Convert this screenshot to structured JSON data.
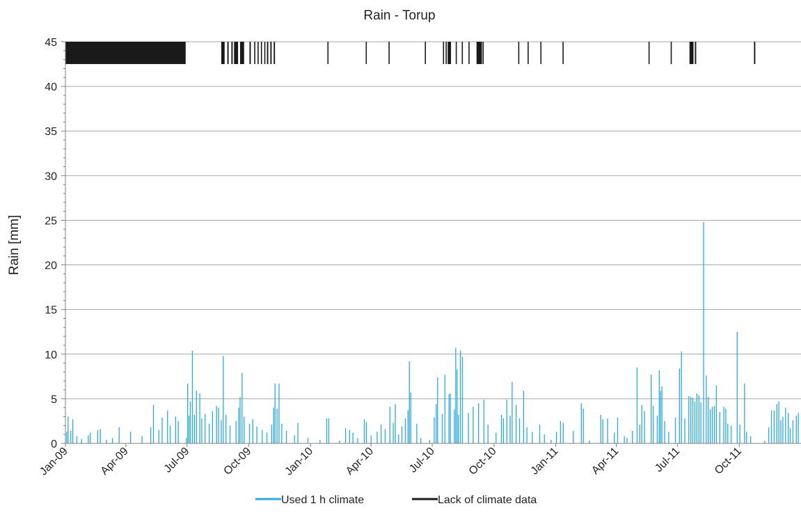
{
  "chart_data": {
    "type": "bar",
    "title": "Rain - Torup",
    "xlabel": "",
    "ylabel": "Rain [mm]",
    "ylim": [
      0,
      45
    ],
    "yticks": [
      0,
      5,
      10,
      15,
      20,
      25,
      30,
      35,
      40,
      45
    ],
    "xlim": [
      "2009-01-01",
      "2011-12-31"
    ],
    "xtick_labels": [
      "Jan-09",
      "Apr-09",
      "Jul-09",
      "Oct-09",
      "Jan-10",
      "Apr-10",
      "Jul-10",
      "Oct-10",
      "Jan-11",
      "Apr-11",
      "Jul-11",
      "Oct-11"
    ],
    "xtick_dates": [
      "2009-01-01",
      "2009-04-01",
      "2009-07-01",
      "2009-10-01",
      "2010-01-01",
      "2010-04-01",
      "2010-07-01",
      "2010-10-01",
      "2011-01-01",
      "2011-04-01",
      "2011-07-01",
      "2011-10-01"
    ],
    "grid": "horizontal",
    "legend_position": "bottom",
    "colors": {
      "rain": "#29abe2",
      "lack": "#1a1a1a",
      "grid": "#a6a6a6"
    },
    "series": [
      {
        "name": "Used 1 h climate",
        "kind": "rain-bars",
        "points": [
          [
            "2009-01-03",
            1.3
          ],
          [
            "2009-01-05",
            3.0
          ],
          [
            "2009-01-09",
            1.4
          ],
          [
            "2009-01-12",
            2.7
          ],
          [
            "2009-01-18",
            0.8
          ],
          [
            "2009-01-25",
            0.5
          ],
          [
            "2009-02-04",
            0.9
          ],
          [
            "2009-02-07",
            1.2
          ],
          [
            "2009-02-18",
            1.5
          ],
          [
            "2009-02-22",
            1.6
          ],
          [
            "2009-03-03",
            0.4
          ],
          [
            "2009-03-12",
            0.6
          ],
          [
            "2009-03-22",
            1.8
          ],
          [
            "2009-04-08",
            1.3
          ],
          [
            "2009-04-25",
            0.8
          ],
          [
            "2009-05-08",
            1.8
          ],
          [
            "2009-05-12",
            4.3
          ],
          [
            "2009-05-20",
            1.5
          ],
          [
            "2009-05-25",
            2.9
          ],
          [
            "2009-06-02",
            3.7
          ],
          [
            "2009-06-06",
            2.0
          ],
          [
            "2009-06-14",
            3.0
          ],
          [
            "2009-06-18",
            2.5
          ],
          [
            "2009-06-30",
            0.6
          ],
          [
            "2009-07-02",
            6.7
          ],
          [
            "2009-07-04",
            3.1
          ],
          [
            "2009-07-06",
            4.7
          ],
          [
            "2009-07-09",
            10.4
          ],
          [
            "2009-07-12",
            3.2
          ],
          [
            "2009-07-15",
            5.9
          ],
          [
            "2009-07-20",
            5.6
          ],
          [
            "2009-07-23",
            2.8
          ],
          [
            "2009-07-28",
            3.3
          ],
          [
            "2009-08-03",
            2.2
          ],
          [
            "2009-08-08",
            3.6
          ],
          [
            "2009-08-14",
            4.2
          ],
          [
            "2009-08-17",
            4.0
          ],
          [
            "2009-08-21",
            2.6
          ],
          [
            "2009-08-24",
            9.8
          ],
          [
            "2009-08-28",
            3.2
          ],
          [
            "2009-09-03",
            2.0
          ],
          [
            "2009-09-12",
            2.5
          ],
          [
            "2009-09-16",
            4.0
          ],
          [
            "2009-09-18",
            5.2
          ],
          [
            "2009-09-21",
            7.9
          ],
          [
            "2009-09-24",
            3.0
          ],
          [
            "2009-10-02",
            2.2
          ],
          [
            "2009-10-07",
            2.7
          ],
          [
            "2009-10-13",
            1.9
          ],
          [
            "2009-10-21",
            1.5
          ],
          [
            "2009-10-28",
            1.2
          ],
          [
            "2009-11-04",
            2.1
          ],
          [
            "2009-11-07",
            4.0
          ],
          [
            "2009-11-09",
            6.7
          ],
          [
            "2009-11-12",
            3.9
          ],
          [
            "2009-11-15",
            6.7
          ],
          [
            "2009-11-19",
            2.2
          ],
          [
            "2009-11-26",
            1.4
          ],
          [
            "2009-12-08",
            0.9
          ],
          [
            "2009-12-13",
            2.3
          ],
          [
            "2009-12-28",
            0.6
          ],
          [
            "2010-01-15",
            0.4
          ],
          [
            "2010-01-25",
            2.8
          ],
          [
            "2010-01-28",
            2.8
          ],
          [
            "2010-02-13",
            0.3
          ],
          [
            "2010-02-22",
            1.7
          ],
          [
            "2010-02-28",
            1.5
          ],
          [
            "2010-03-05",
            1.2
          ],
          [
            "2010-03-12",
            0.6
          ],
          [
            "2010-03-22",
            2.7
          ],
          [
            "2010-03-25",
            2.4
          ],
          [
            "2010-04-01",
            0.9
          ],
          [
            "2010-04-10",
            1.3
          ],
          [
            "2010-04-16",
            2.1
          ],
          [
            "2010-04-22",
            1.6
          ],
          [
            "2010-04-29",
            4.1
          ],
          [
            "2010-05-04",
            2.3
          ],
          [
            "2010-05-07",
            4.4
          ],
          [
            "2010-05-12",
            1.0
          ],
          [
            "2010-05-17",
            1.9
          ],
          [
            "2010-05-22",
            2.8
          ],
          [
            "2010-05-26",
            3.7
          ],
          [
            "2010-05-28",
            9.2
          ],
          [
            "2010-05-30",
            5.7
          ],
          [
            "2010-06-08",
            2.2
          ],
          [
            "2010-06-14",
            0.6
          ],
          [
            "2010-06-27",
            0.4
          ],
          [
            "2010-07-04",
            2.9
          ],
          [
            "2010-07-07",
            4.4
          ],
          [
            "2010-07-09",
            7.4
          ],
          [
            "2010-07-16",
            3.3
          ],
          [
            "2010-07-20",
            7.7
          ],
          [
            "2010-07-26",
            5.5
          ],
          [
            "2010-07-28",
            5.6
          ],
          [
            "2010-08-03",
            3.8
          ],
          [
            "2010-08-05",
            10.7
          ],
          [
            "2010-08-07",
            8.3
          ],
          [
            "2010-08-09",
            3.2
          ],
          [
            "2010-08-12",
            10.4
          ],
          [
            "2010-08-15",
            9.7
          ],
          [
            "2010-08-24",
            3.4
          ],
          [
            "2010-08-31",
            4.1
          ],
          [
            "2010-09-08",
            4.5
          ],
          [
            "2010-09-16",
            4.9
          ],
          [
            "2010-09-22",
            2.1
          ],
          [
            "2010-10-04",
            1.2
          ],
          [
            "2010-10-12",
            3.2
          ],
          [
            "2010-10-15",
            2.8
          ],
          [
            "2010-10-20",
            4.9
          ],
          [
            "2010-10-25",
            3.1
          ],
          [
            "2010-10-28",
            6.9
          ],
          [
            "2010-11-03",
            4.3
          ],
          [
            "2010-11-08",
            2.8
          ],
          [
            "2010-11-14",
            5.9
          ],
          [
            "2010-11-19",
            1.8
          ],
          [
            "2010-11-27",
            1.3
          ],
          [
            "2010-12-08",
            2.1
          ],
          [
            "2010-12-15",
            1.0
          ],
          [
            "2010-12-25",
            0.4
          ],
          [
            "2011-01-02",
            1.3
          ],
          [
            "2011-01-08",
            2.5
          ],
          [
            "2011-01-12",
            2.3
          ],
          [
            "2011-01-27",
            1.4
          ],
          [
            "2011-02-08",
            4.5
          ],
          [
            "2011-02-11",
            3.9
          ],
          [
            "2011-02-20",
            0.3
          ],
          [
            "2011-03-09",
            3.2
          ],
          [
            "2011-03-12",
            2.7
          ],
          [
            "2011-03-19",
            2.8
          ],
          [
            "2011-03-29",
            1.2
          ],
          [
            "2011-04-03",
            2.9
          ],
          [
            "2011-04-13",
            0.8
          ],
          [
            "2011-04-17",
            0.6
          ],
          [
            "2011-04-25",
            1.4
          ],
          [
            "2011-05-02",
            8.5
          ],
          [
            "2011-05-06",
            2.1
          ],
          [
            "2011-05-09",
            4.3
          ],
          [
            "2011-05-13",
            3.6
          ],
          [
            "2011-05-23",
            7.7
          ],
          [
            "2011-05-26",
            4.2
          ],
          [
            "2011-06-01",
            3.1
          ],
          [
            "2011-06-04",
            8.2
          ],
          [
            "2011-06-06",
            5.9
          ],
          [
            "2011-06-08",
            6.4
          ],
          [
            "2011-06-12",
            2.5
          ],
          [
            "2011-06-18",
            1.3
          ],
          [
            "2011-06-28",
            2.9
          ],
          [
            "2011-07-04",
            8.4
          ],
          [
            "2011-07-07",
            10.3
          ],
          [
            "2011-07-12",
            2.8
          ],
          [
            "2011-07-18",
            5.3
          ],
          [
            "2011-07-21",
            5.2
          ],
          [
            "2011-07-24",
            5.1
          ],
          [
            "2011-07-27",
            4.7
          ],
          [
            "2011-07-30",
            5.6
          ],
          [
            "2011-08-02",
            5.4
          ],
          [
            "2011-08-05",
            4.6
          ],
          [
            "2011-08-09",
            24.8
          ],
          [
            "2011-08-13",
            7.6
          ],
          [
            "2011-08-16",
            5.2
          ],
          [
            "2011-08-19",
            3.8
          ],
          [
            "2011-08-22",
            4.1
          ],
          [
            "2011-08-25",
            4.2
          ],
          [
            "2011-08-28",
            6.5
          ],
          [
            "2011-09-02",
            3.5
          ],
          [
            "2011-09-08",
            4.1
          ],
          [
            "2011-09-11",
            3.9
          ],
          [
            "2011-09-14",
            2.2
          ],
          [
            "2011-09-19",
            2.0
          ],
          [
            "2011-09-28",
            12.5
          ],
          [
            "2011-10-02",
            2.1
          ],
          [
            "2011-10-09",
            6.7
          ],
          [
            "2011-10-12",
            1.3
          ],
          [
            "2011-10-18",
            0.8
          ],
          [
            "2011-11-08",
            0.3
          ],
          [
            "2011-11-14",
            1.8
          ],
          [
            "2011-11-18",
            3.7
          ],
          [
            "2011-11-22",
            3.7
          ],
          [
            "2011-11-26",
            4.4
          ],
          [
            "2011-11-29",
            4.7
          ],
          [
            "2011-12-02",
            2.6
          ],
          [
            "2011-12-05",
            3.0
          ],
          [
            "2011-12-09",
            4.0
          ],
          [
            "2011-12-13",
            3.4
          ],
          [
            "2011-12-16",
            1.7
          ],
          [
            "2011-12-20",
            2.6
          ],
          [
            "2011-12-25",
            3.1
          ],
          [
            "2011-12-28",
            3.4
          ]
        ]
      },
      {
        "name": "Lack of climate data",
        "kind": "missing-periods",
        "range": [
          42.5,
          45
        ],
        "periods": [
          [
            "2009-01-01",
            "2009-06-29"
          ],
          [
            "2009-08-21",
            "2009-08-26"
          ],
          [
            "2009-08-30",
            "2009-09-01"
          ],
          [
            "2009-09-05",
            "2009-09-07"
          ],
          [
            "2009-09-09",
            "2009-09-15"
          ],
          [
            "2009-09-18",
            "2009-09-24"
          ],
          [
            "2009-10-02",
            "2009-10-04"
          ],
          [
            "2009-10-09",
            "2009-10-10"
          ],
          [
            "2009-10-14",
            "2009-10-15"
          ],
          [
            "2009-10-19",
            "2009-10-20"
          ],
          [
            "2009-10-24",
            "2009-10-25"
          ],
          [
            "2009-10-28",
            "2009-10-30"
          ],
          [
            "2009-11-02",
            "2009-11-04"
          ],
          [
            "2009-11-07",
            "2009-11-09"
          ],
          [
            "2010-01-26",
            "2010-01-27"
          ],
          [
            "2010-03-24",
            "2010-03-25"
          ],
          [
            "2010-04-27",
            "2010-04-28"
          ],
          [
            "2010-06-20",
            "2010-06-21"
          ],
          [
            "2010-07-17",
            "2010-07-18"
          ],
          [
            "2010-07-21",
            "2010-07-22"
          ],
          [
            "2010-07-24",
            "2010-07-29"
          ],
          [
            "2010-08-05",
            "2010-08-06"
          ],
          [
            "2010-08-14",
            "2010-08-15"
          ],
          [
            "2010-08-24",
            "2010-08-25"
          ],
          [
            "2010-09-05",
            "2010-09-13"
          ],
          [
            "2010-09-14",
            "2010-09-15"
          ],
          [
            "2010-11-06",
            "2010-11-07"
          ],
          [
            "2010-11-20",
            "2010-11-21"
          ],
          [
            "2010-12-09",
            "2010-12-10"
          ],
          [
            "2011-01-11",
            "2011-01-12"
          ],
          [
            "2011-05-19",
            "2011-05-20"
          ],
          [
            "2011-06-21",
            "2011-06-22"
          ],
          [
            "2011-07-19",
            "2011-07-25"
          ],
          [
            "2011-07-27",
            "2011-07-29"
          ],
          [
            "2011-10-23",
            "2011-10-25"
          ]
        ]
      }
    ]
  }
}
